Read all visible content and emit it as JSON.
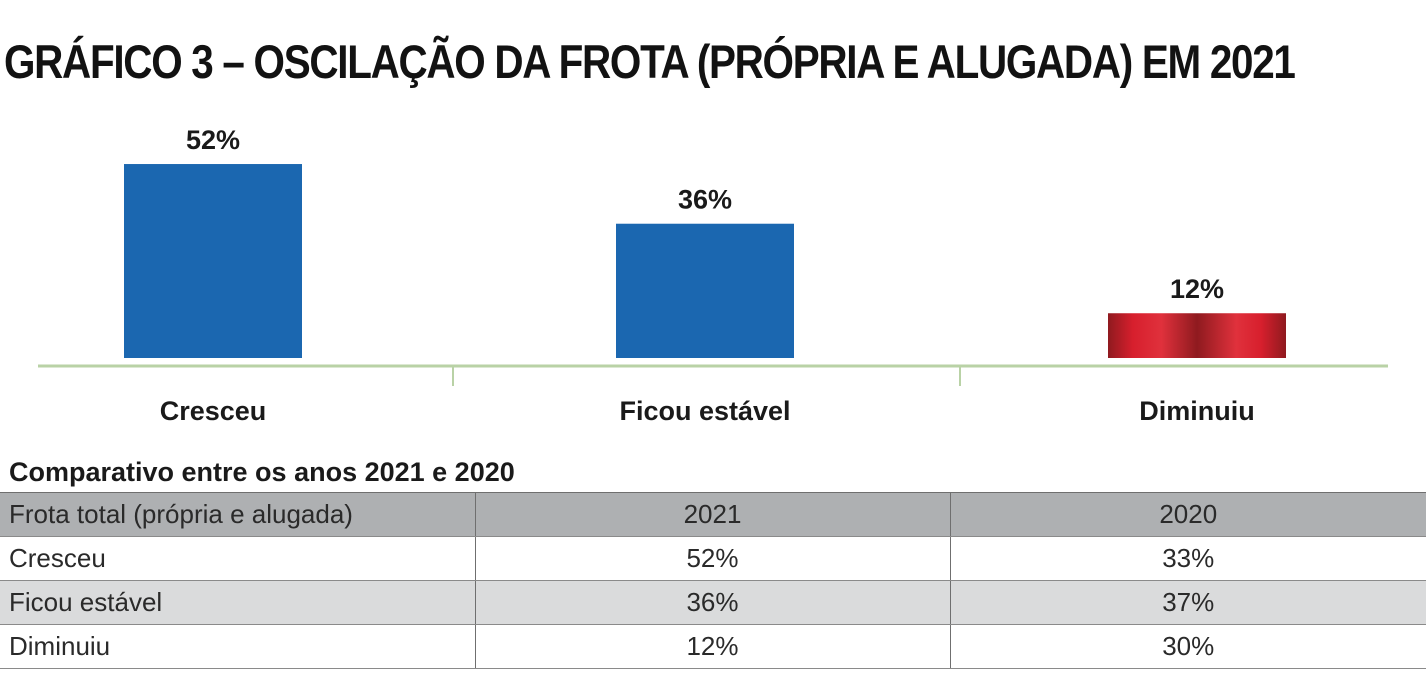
{
  "title": "GRÁFICO 3 – OSCILAÇÃO DA FROTA (PRÓPRIA E ALUGADA) EM 2021",
  "colors": {
    "bar_positive": "#1b67b0",
    "bar_negative": "#d71f2d",
    "bar_negative_dark": "#8f1a1f",
    "axis_line": "#b9d2a6",
    "table_header_bg": "#aeb0b2",
    "table_shaded_row_bg": "#dadbdc"
  },
  "chart_data": {
    "type": "bar",
    "title": "GRÁFICO 3 – OSCILAÇÃO DA FROTA (PRÓPRIA E ALUGADA) EM 2021",
    "categories": [
      "Cresceu",
      "Ficou estável",
      "Diminuiu"
    ],
    "values": [
      52,
      36,
      12
    ],
    "data_labels": [
      "52%",
      "36%",
      "12%"
    ],
    "bar_colors": [
      "#1b67b0",
      "#1b67b0",
      "#d71f2d"
    ],
    "unit": "%",
    "xlabel": "",
    "ylabel": "",
    "grid": false,
    "legend": "none"
  },
  "comparison": {
    "subtitle": "Comparativo entre os anos 2021 e 2020",
    "header": [
      "Frota total (própria e alugada)",
      "2021",
      "2020"
    ],
    "rows": [
      [
        "Cresceu",
        "52%",
        "33%"
      ],
      [
        "Ficou estável",
        "36%",
        "37%"
      ],
      [
        "Diminuiu",
        "12%",
        "30%"
      ]
    ]
  }
}
